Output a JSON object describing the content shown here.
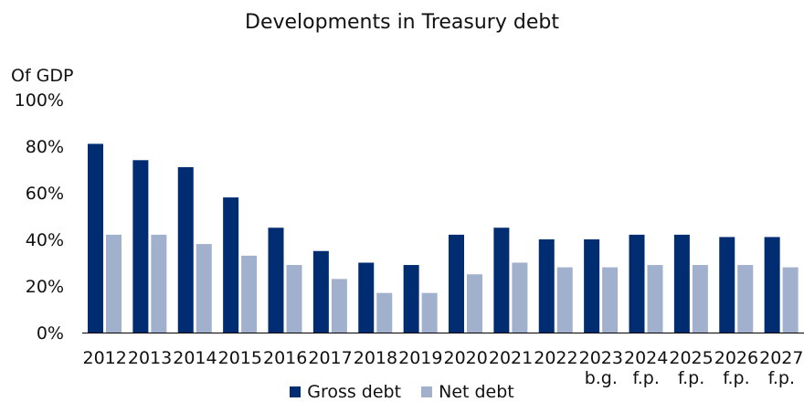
{
  "chart_data": {
    "type": "bar",
    "title": "Developments in Treasury debt",
    "ylabel": "Of GDP",
    "xlabel": "",
    "ylim": [
      0,
      100
    ],
    "yticks": [
      "0%",
      "20%",
      "40%",
      "60%",
      "80%",
      "100%"
    ],
    "ytick_values": [
      0,
      20,
      40,
      60,
      80,
      100
    ],
    "categories": [
      "2012",
      "2013",
      "2014",
      "2015",
      "2016",
      "2017",
      "2018",
      "2019",
      "2020",
      "2021",
      "2022",
      "2023",
      "2024",
      "2025",
      "2026",
      "2027"
    ],
    "category_sublabels": [
      "",
      "",
      "",
      "",
      "",
      "",
      "",
      "",
      "",
      "",
      "",
      "b.g.",
      "f.p.",
      "f.p.",
      "f.p.",
      "f.p."
    ],
    "series": [
      {
        "name": "Gross debt",
        "color": "#002d72",
        "values": [
          81,
          74,
          71,
          58,
          45,
          35,
          30,
          29,
          42,
          45,
          40,
          40,
          42,
          42,
          41,
          41
        ]
      },
      {
        "name": "Net debt",
        "color": "#a1b0cc",
        "values": [
          42,
          42,
          38,
          33,
          29,
          23,
          17,
          17,
          25,
          30,
          28,
          28,
          29,
          29,
          29,
          28
        ]
      }
    ],
    "legend_position": "bottom",
    "grid": false
  }
}
